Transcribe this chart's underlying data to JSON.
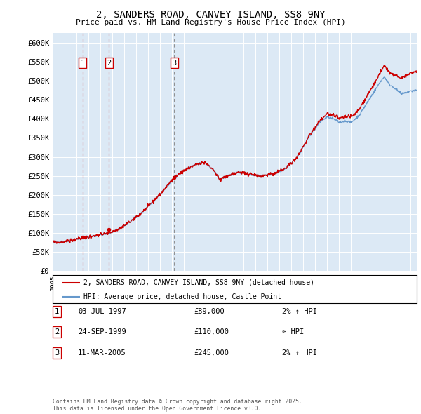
{
  "title": "2, SANDERS ROAD, CANVEY ISLAND, SS8 9NY",
  "subtitle": "Price paid vs. HM Land Registry's House Price Index (HPI)",
  "background_color": "#dce9f5",
  "plot_background": "#dce9f5",
  "ylim": [
    0,
    625000
  ],
  "yticks": [
    0,
    50000,
    100000,
    150000,
    200000,
    250000,
    300000,
    350000,
    400000,
    450000,
    500000,
    550000,
    600000
  ],
  "ytick_labels": [
    "£0",
    "£50K",
    "£100K",
    "£150K",
    "£200K",
    "£250K",
    "£300K",
    "£350K",
    "£400K",
    "£450K",
    "£500K",
    "£550K",
    "£600K"
  ],
  "sales": [
    {
      "label": "1",
      "date": "1997-07-03",
      "price": 89000,
      "x": 1997.5,
      "vline_color": "#cc0000",
      "vline_style": "--"
    },
    {
      "label": "2",
      "date": "1999-09-24",
      "price": 110000,
      "x": 1999.73,
      "vline_color": "#cc0000",
      "vline_style": "--"
    },
    {
      "label": "3",
      "date": "2005-03-11",
      "price": 245000,
      "x": 2005.19,
      "vline_color": "#888888",
      "vline_style": "--"
    }
  ],
  "legend_line1": "2, SANDERS ROAD, CANVEY ISLAND, SS8 9NY (detached house)",
  "legend_line2": "HPI: Average price, detached house, Castle Point",
  "table_rows": [
    {
      "num": "1",
      "date": "03-JUL-1997",
      "price": "£89,000",
      "note": "2% ↑ HPI"
    },
    {
      "num": "2",
      "date": "24-SEP-1999",
      "price": "£110,000",
      "note": "≈ HPI"
    },
    {
      "num": "3",
      "date": "11-MAR-2005",
      "price": "£245,000",
      "note": "2% ↑ HPI"
    }
  ],
  "footnote": "Contains HM Land Registry data © Crown copyright and database right 2025.\nThis data is licensed under the Open Government Licence v3.0.",
  "line_color_red": "#cc0000",
  "line_color_blue": "#6699cc",
  "sale_marker_color": "#cc0000",
  "xlim_start": 1995.0,
  "xlim_end": 2025.5
}
